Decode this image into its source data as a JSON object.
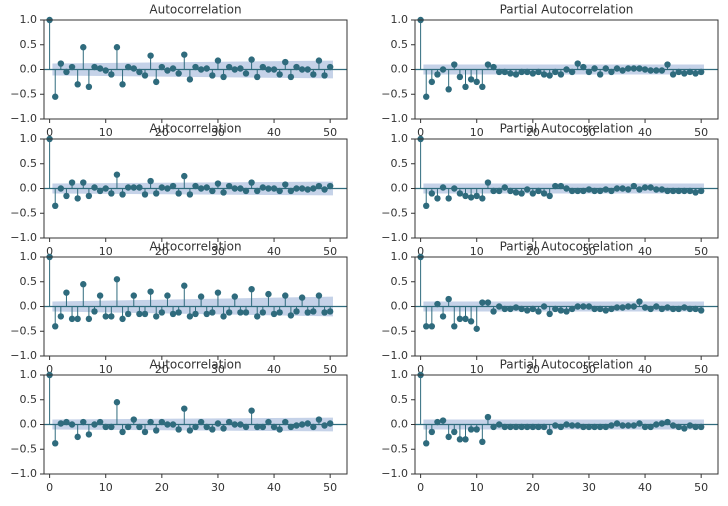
{
  "chart_data": [
    {
      "type": "stem",
      "title": "Autocorrelation",
      "color": "#2f6b7d",
      "band_color": "#b7c7e2",
      "x": [
        0,
        1,
        2,
        3,
        4,
        5,
        6,
        7,
        8,
        9,
        10,
        11,
        12,
        13,
        14,
        15,
        16,
        17,
        18,
        19,
        20,
        21,
        22,
        23,
        24,
        25,
        26,
        27,
        28,
        29,
        30,
        31,
        32,
        33,
        34,
        35,
        36,
        37,
        38,
        39,
        40,
        41,
        42,
        43,
        44,
        45,
        46,
        47,
        48,
        49,
        50
      ],
      "values": [
        1,
        -0.55,
        0.12,
        -0.05,
        0.05,
        -0.3,
        0.45,
        -0.35,
        0.05,
        0.02,
        -0.02,
        -0.1,
        0.45,
        -0.3,
        0.05,
        0.02,
        -0.05,
        -0.12,
        0.28,
        -0.25,
        0.05,
        -0.02,
        0.02,
        -0.08,
        0.3,
        -0.2,
        0.05,
        0.0,
        0.02,
        -0.12,
        0.18,
        -0.15,
        0.05,
        0.0,
        0.02,
        -0.08,
        0.2,
        -0.15,
        0.05,
        0.0,
        0.0,
        -0.1,
        0.15,
        -0.15,
        0.05,
        0.0,
        0.0,
        -0.1,
        0.18,
        -0.12,
        0.05
      ],
      "confidence_band": {
        "x": [
          0.5,
          50.5
        ],
        "values": [
          0.12,
          0.18
        ]
      },
      "xlim": [
        -1,
        53
      ],
      "ylim": [
        -1,
        1
      ],
      "xticks": [
        0,
        10,
        20,
        30,
        40,
        50
      ],
      "yticks": [
        {
          "value": -1,
          "label": "−1.0"
        },
        {
          "value": -0.5,
          "label": "−0.5"
        },
        {
          "value": 0,
          "label": "0.0"
        },
        {
          "value": 0.5,
          "label": "0.5"
        },
        {
          "value": 1,
          "label": "1.0"
        }
      ]
    },
    {
      "type": "stem",
      "title": "Partial Autocorrelation",
      "color": "#2f6b7d",
      "band_color": "#b7c7e2",
      "x": [
        0,
        1,
        2,
        3,
        4,
        5,
        6,
        7,
        8,
        9,
        10,
        11,
        12,
        13,
        14,
        15,
        16,
        17,
        18,
        19,
        20,
        21,
        22,
        23,
        24,
        25,
        26,
        27,
        28,
        29,
        30,
        31,
        32,
        33,
        34,
        35,
        36,
        37,
        38,
        39,
        40,
        41,
        42,
        43,
        44,
        45,
        46,
        47,
        48,
        49,
        50
      ],
      "values": [
        1,
        -0.55,
        -0.25,
        -0.1,
        0.0,
        -0.4,
        0.1,
        -0.15,
        -0.35,
        -0.2,
        -0.25,
        -0.35,
        0.1,
        0.05,
        -0.05,
        -0.05,
        -0.08,
        -0.1,
        -0.05,
        -0.05,
        -0.08,
        -0.05,
        -0.1,
        -0.12,
        -0.05,
        -0.1,
        0.0,
        -0.05,
        0.12,
        0.05,
        -0.05,
        0.02,
        -0.1,
        0.02,
        -0.05,
        0.02,
        -0.02,
        0.02,
        0.02,
        0.02,
        0.0,
        -0.02,
        -0.02,
        -0.02,
        0.1,
        -0.1,
        -0.05,
        -0.08,
        -0.05,
        -0.08,
        -0.05
      ],
      "confidence_band": {
        "x": [
          0.5,
          50.5
        ],
        "values": [
          0.1,
          0.1
        ]
      },
      "xlim": [
        -1,
        53
      ],
      "ylim": [
        -1,
        1
      ],
      "xticks": [
        0,
        10,
        20,
        30,
        40,
        50
      ],
      "yticks": [
        {
          "value": -1,
          "label": "−1.0"
        },
        {
          "value": -0.5,
          "label": "−0.5"
        },
        {
          "value": 0,
          "label": "0.0"
        },
        {
          "value": 0.5,
          "label": "0.5"
        },
        {
          "value": 1,
          "label": "1.0"
        }
      ]
    },
    {
      "type": "stem",
      "title": "Autocorrelation",
      "color": "#2f6b7d",
      "band_color": "#b7c7e2",
      "x": [
        0,
        1,
        2,
        3,
        4,
        5,
        6,
        7,
        8,
        9,
        10,
        11,
        12,
        13,
        14,
        15,
        16,
        17,
        18,
        19,
        20,
        21,
        22,
        23,
        24,
        25,
        26,
        27,
        28,
        29,
        30,
        31,
        32,
        33,
        34,
        35,
        36,
        37,
        38,
        39,
        40,
        41,
        42,
        43,
        44,
        45,
        46,
        47,
        48,
        49,
        50
      ],
      "values": [
        1,
        -0.35,
        0.0,
        -0.15,
        0.12,
        -0.2,
        0.12,
        -0.15,
        0.02,
        -0.05,
        0.0,
        -0.1,
        0.28,
        -0.12,
        0.02,
        0.02,
        0.02,
        -0.12,
        0.15,
        -0.1,
        0.02,
        0.0,
        0.05,
        -0.1,
        0.25,
        -0.12,
        0.05,
        0.0,
        0.02,
        -0.05,
        0.1,
        -0.08,
        0.05,
        0.0,
        0.0,
        -0.05,
        0.12,
        -0.05,
        0.02,
        0.0,
        0.0,
        -0.05,
        0.08,
        -0.05,
        0.0,
        0.0,
        -0.02,
        0.0,
        0.05,
        -0.02,
        0.05
      ],
      "confidence_band": {
        "x": [
          0.5,
          50.5
        ],
        "values": [
          0.1,
          0.14
        ]
      },
      "xlim": [
        -1,
        53
      ],
      "ylim": [
        -1,
        1
      ],
      "xticks": [
        0,
        10,
        20,
        30,
        40,
        50
      ],
      "yticks": [
        {
          "value": -1,
          "label": "−1.0"
        },
        {
          "value": -0.5,
          "label": "−0.5"
        },
        {
          "value": 0,
          "label": "0.0"
        },
        {
          "value": 0.5,
          "label": "0.5"
        },
        {
          "value": 1,
          "label": "1.0"
        }
      ]
    },
    {
      "type": "stem",
      "title": "Partial Autocorrelation",
      "color": "#2f6b7d",
      "band_color": "#b7c7e2",
      "x": [
        0,
        1,
        2,
        3,
        4,
        5,
        6,
        7,
        8,
        9,
        10,
        11,
        12,
        13,
        14,
        15,
        16,
        17,
        18,
        19,
        20,
        21,
        22,
        23,
        24,
        25,
        26,
        27,
        28,
        29,
        30,
        31,
        32,
        33,
        34,
        35,
        36,
        37,
        38,
        39,
        40,
        41,
        42,
        43,
        44,
        45,
        46,
        47,
        48,
        49,
        50
      ],
      "values": [
        1,
        -0.35,
        -0.1,
        -0.2,
        0.02,
        -0.2,
        0.0,
        -0.1,
        -0.15,
        -0.18,
        -0.15,
        -0.2,
        0.12,
        -0.05,
        -0.05,
        0.02,
        -0.05,
        -0.08,
        -0.1,
        -0.02,
        -0.1,
        -0.05,
        -0.1,
        -0.15,
        0.05,
        0.05,
        0.0,
        -0.05,
        -0.05,
        -0.05,
        -0.02,
        -0.05,
        -0.05,
        -0.02,
        -0.05,
        0.0,
        0.0,
        -0.02,
        0.05,
        -0.02,
        0.02,
        0.02,
        -0.02,
        -0.02,
        -0.05,
        -0.05,
        -0.05,
        -0.05,
        -0.05,
        -0.08,
        -0.05
      ],
      "confidence_band": {
        "x": [
          0.5,
          50.5
        ],
        "values": [
          0.1,
          0.1
        ]
      },
      "xlim": [
        -1,
        53
      ],
      "ylim": [
        -1,
        1
      ],
      "xticks": [
        0,
        10,
        20,
        30,
        40,
        50
      ],
      "yticks": [
        {
          "value": -1,
          "label": "−1.0"
        },
        {
          "value": -0.5,
          "label": "−0.5"
        },
        {
          "value": 0,
          "label": "0.0"
        },
        {
          "value": 0.5,
          "label": "0.5"
        },
        {
          "value": 1,
          "label": "1.0"
        }
      ]
    },
    {
      "type": "stem",
      "title": "Autocorrelation",
      "color": "#2f6b7d",
      "band_color": "#b7c7e2",
      "x": [
        0,
        1,
        2,
        3,
        4,
        5,
        6,
        7,
        8,
        9,
        10,
        11,
        12,
        13,
        14,
        15,
        16,
        17,
        18,
        19,
        20,
        21,
        22,
        23,
        24,
        25,
        26,
        27,
        28,
        29,
        30,
        31,
        32,
        33,
        34,
        35,
        36,
        37,
        38,
        39,
        40,
        41,
        42,
        43,
        44,
        45,
        46,
        47,
        48,
        49,
        50
      ],
      "values": [
        1,
        -0.4,
        -0.2,
        0.28,
        -0.25,
        -0.25,
        0.45,
        -0.25,
        -0.1,
        0.22,
        -0.2,
        -0.2,
        0.55,
        -0.25,
        -0.15,
        0.22,
        -0.15,
        -0.15,
        0.3,
        -0.2,
        -0.12,
        0.22,
        -0.15,
        -0.12,
        0.42,
        -0.2,
        -0.15,
        0.2,
        -0.15,
        -0.12,
        0.28,
        -0.2,
        -0.12,
        0.2,
        -0.12,
        -0.12,
        0.35,
        -0.2,
        -0.12,
        0.25,
        -0.15,
        -0.12,
        0.22,
        -0.18,
        -0.1,
        0.18,
        -0.12,
        -0.1,
        0.22,
        -0.12,
        -0.1
      ],
      "confidence_band": {
        "x": [
          0.5,
          50.5
        ],
        "values": [
          0.1,
          0.2
        ]
      },
      "xlim": [
        -1,
        53
      ],
      "ylim": [
        -1,
        1
      ],
      "xticks": [
        0,
        10,
        20,
        30,
        40,
        50
      ],
      "yticks": [
        {
          "value": -1,
          "label": "−1.0"
        },
        {
          "value": -0.5,
          "label": "−0.5"
        },
        {
          "value": 0,
          "label": "0.0"
        },
        {
          "value": 0.5,
          "label": "0.5"
        },
        {
          "value": 1,
          "label": "1.0"
        }
      ]
    },
    {
      "type": "stem",
      "title": "Partial Autocorrelation",
      "color": "#2f6b7d",
      "band_color": "#b7c7e2",
      "x": [
        0,
        1,
        2,
        3,
        4,
        5,
        6,
        7,
        8,
        9,
        10,
        11,
        12,
        13,
        14,
        15,
        16,
        17,
        18,
        19,
        20,
        21,
        22,
        23,
        24,
        25,
        26,
        27,
        28,
        29,
        30,
        31,
        32,
        33,
        34,
        35,
        36,
        37,
        38,
        39,
        40,
        41,
        42,
        43,
        44,
        45,
        46,
        47,
        48,
        49,
        50
      ],
      "values": [
        1,
        -0.4,
        -0.4,
        0.05,
        -0.2,
        0.15,
        -0.4,
        -0.25,
        -0.25,
        -0.3,
        -0.45,
        0.08,
        0.08,
        -0.1,
        0.0,
        -0.05,
        -0.05,
        -0.02,
        -0.05,
        -0.08,
        -0.05,
        -0.1,
        0.0,
        -0.15,
        -0.05,
        -0.08,
        -0.1,
        -0.05,
        0.0,
        0.0,
        0.0,
        -0.05,
        -0.05,
        -0.08,
        -0.05,
        -0.02,
        -0.02,
        0.0,
        0.0,
        0.1,
        -0.02,
        -0.05,
        0.0,
        -0.05,
        -0.02,
        -0.05,
        -0.05,
        -0.02,
        -0.05,
        -0.05,
        -0.08
      ],
      "confidence_band": {
        "x": [
          0.5,
          50.5
        ],
        "values": [
          0.1,
          0.1
        ]
      },
      "xlim": [
        -1,
        53
      ],
      "ylim": [
        -1,
        1
      ],
      "xticks": [
        0,
        10,
        20,
        30,
        40,
        50
      ],
      "yticks": [
        {
          "value": -1,
          "label": "−1.0"
        },
        {
          "value": -0.5,
          "label": "−0.5"
        },
        {
          "value": 0,
          "label": "0.0"
        },
        {
          "value": 0.5,
          "label": "0.5"
        },
        {
          "value": 1,
          "label": "1.0"
        }
      ]
    },
    {
      "type": "stem",
      "title": "Autocorrelation",
      "color": "#2f6b7d",
      "band_color": "#b7c7e2",
      "x": [
        0,
        1,
        2,
        3,
        4,
        5,
        6,
        7,
        8,
        9,
        10,
        11,
        12,
        13,
        14,
        15,
        16,
        17,
        18,
        19,
        20,
        21,
        22,
        23,
        24,
        25,
        26,
        27,
        28,
        29,
        30,
        31,
        32,
        33,
        34,
        35,
        36,
        37,
        38,
        39,
        40,
        41,
        42,
        43,
        44,
        45,
        46,
        47,
        48,
        49,
        50
      ],
      "values": [
        1,
        -0.38,
        0.02,
        0.05,
        0.0,
        -0.25,
        0.05,
        -0.2,
        0.0,
        0.05,
        -0.05,
        -0.05,
        0.45,
        -0.15,
        -0.05,
        0.1,
        -0.05,
        -0.15,
        0.05,
        -0.12,
        0.05,
        0.0,
        0.0,
        -0.1,
        0.32,
        -0.12,
        -0.05,
        0.05,
        -0.05,
        -0.1,
        0.02,
        -0.08,
        0.05,
        0.0,
        0.0,
        -0.05,
        0.28,
        -0.05,
        -0.05,
        0.05,
        -0.05,
        -0.1,
        0.05,
        -0.05,
        -0.02,
        0.0,
        0.02,
        -0.05,
        0.1,
        -0.02,
        0.02
      ],
      "confidence_band": {
        "x": [
          0.5,
          50.5
        ],
        "values": [
          0.1,
          0.14
        ]
      },
      "xlim": [
        -1,
        53
      ],
      "ylim": [
        -1,
        1
      ],
      "xticks": [
        0,
        10,
        20,
        30,
        40,
        50
      ],
      "yticks": [
        {
          "value": -1,
          "label": "−1.0"
        },
        {
          "value": -0.5,
          "label": "−0.5"
        },
        {
          "value": 0,
          "label": "0.0"
        },
        {
          "value": 0.5,
          "label": "0.5"
        },
        {
          "value": 1,
          "label": "1.0"
        }
      ]
    },
    {
      "type": "stem",
      "title": "Partial Autocorrelation",
      "color": "#2f6b7d",
      "band_color": "#b7c7e2",
      "x": [
        0,
        1,
        2,
        3,
        4,
        5,
        6,
        7,
        8,
        9,
        10,
        11,
        12,
        13,
        14,
        15,
        16,
        17,
        18,
        19,
        20,
        21,
        22,
        23,
        24,
        25,
        26,
        27,
        28,
        29,
        30,
        31,
        32,
        33,
        34,
        35,
        36,
        37,
        38,
        39,
        40,
        41,
        42,
        43,
        44,
        45,
        46,
        47,
        48,
        49,
        50
      ],
      "values": [
        1,
        -0.38,
        -0.15,
        0.05,
        0.08,
        -0.25,
        -0.15,
        -0.3,
        -0.3,
        -0.1,
        -0.1,
        -0.35,
        0.15,
        -0.05,
        0.0,
        -0.05,
        -0.05,
        -0.05,
        -0.05,
        -0.05,
        -0.05,
        -0.05,
        -0.05,
        -0.15,
        -0.02,
        -0.05,
        0.0,
        -0.02,
        -0.02,
        -0.05,
        -0.05,
        -0.05,
        -0.05,
        -0.05,
        -0.02,
        0.02,
        -0.02,
        -0.02,
        -0.02,
        0.02,
        -0.05,
        -0.05,
        0.0,
        0.02,
        0.05,
        -0.02,
        -0.05,
        -0.08,
        -0.02,
        -0.05,
        -0.05
      ],
      "confidence_band": {
        "x": [
          0.5,
          50.5
        ],
        "values": [
          0.1,
          0.1
        ]
      },
      "xlim": [
        -1,
        53
      ],
      "ylim": [
        -1,
        1
      ],
      "xticks": [
        0,
        10,
        20,
        30,
        40,
        50
      ],
      "yticks": [
        {
          "value": -1,
          "label": "−1.0"
        },
        {
          "value": -0.5,
          "label": "−0.5"
        },
        {
          "value": 0,
          "label": "0.0"
        },
        {
          "value": 0.5,
          "label": "0.5"
        },
        {
          "value": 1,
          "label": "1.0"
        }
      ]
    }
  ]
}
